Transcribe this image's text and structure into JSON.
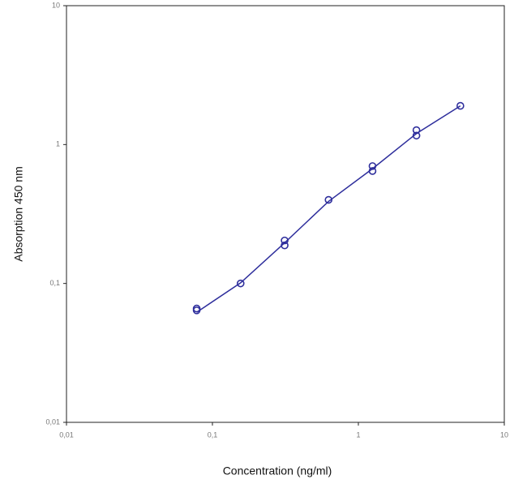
{
  "chart_data": {
    "type": "scatter",
    "xlabel": "Concentration (ng/ml)",
    "ylabel": "Absorption 450 nm",
    "xscale": "log",
    "yscale": "log",
    "xlim": [
      0.01,
      10
    ],
    "ylim": [
      0.01,
      10
    ],
    "xticks": [
      {
        "value": 0.01,
        "label": "0,01"
      },
      {
        "value": 0.1,
        "label": "0,1"
      },
      1,
      10
    ],
    "yticks": [
      {
        "value": 0.01,
        "label": "0,01"
      },
      {
        "value": 0.1,
        "label": "0,1"
      },
      1,
      10
    ],
    "color": "#2e2e9c",
    "x": [
      0.078,
      0.078,
      0.156,
      0.3125,
      0.3125,
      0.625,
      1.25,
      1.25,
      2.5,
      2.5,
      5
    ],
    "values": [
      0.066,
      0.064,
      0.1,
      0.204,
      0.188,
      0.4,
      0.7,
      0.645,
      1.27,
      1.16,
      1.9
    ],
    "fit": {
      "x": [
        0.078,
        0.156,
        0.3125,
        0.625,
        1.25,
        2.5,
        5
      ],
      "values": [
        0.062,
        0.101,
        0.196,
        0.39,
        0.67,
        1.2,
        1.9
      ]
    }
  }
}
